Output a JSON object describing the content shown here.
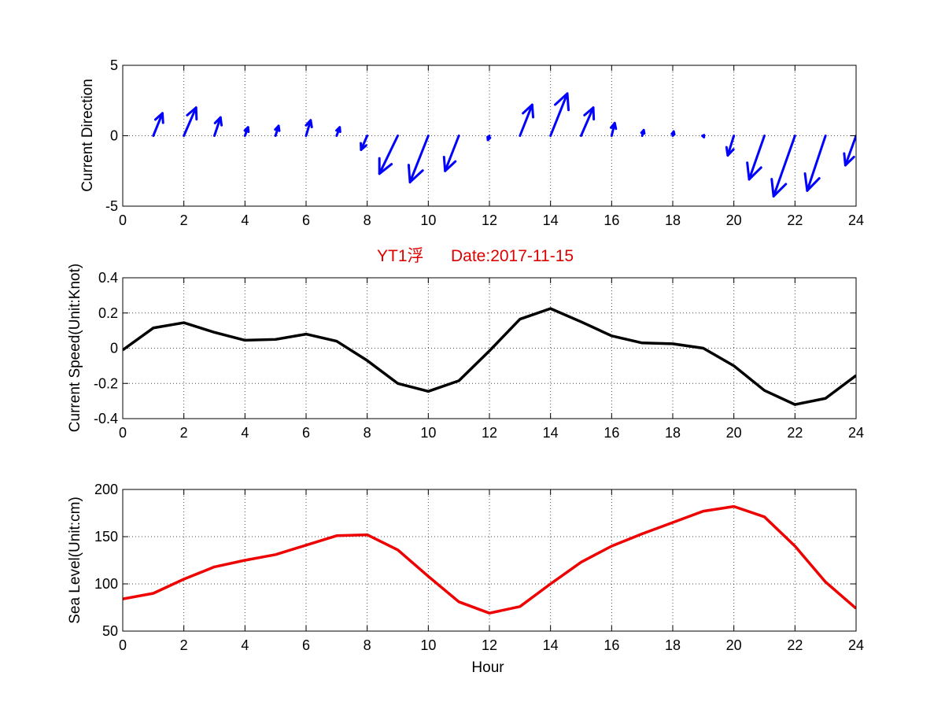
{
  "chart_data": [
    {
      "type": "quiver",
      "ylabel": "Current Direction",
      "xlim": [
        0,
        24
      ],
      "ylim": [
        -5,
        5
      ],
      "x_ticks": [
        "0",
        "2",
        "4",
        "6",
        "8",
        "10",
        "12",
        "14",
        "16",
        "18",
        "20",
        "22",
        "24"
      ],
      "y_ticks": [
        "5",
        "0",
        "-5"
      ],
      "grid": true,
      "arrow_color": "#0000ff",
      "arrows": [
        {
          "x": 1,
          "u": 0.3,
          "v": 1.6
        },
        {
          "x": 2,
          "u": 0.4,
          "v": 2.0
        },
        {
          "x": 3,
          "u": 0.2,
          "v": 1.3
        },
        {
          "x": 4,
          "u": 0.1,
          "v": 0.6
        },
        {
          "x": 5,
          "u": 0.1,
          "v": 0.7
        },
        {
          "x": 6,
          "u": 0.15,
          "v": 1.1
        },
        {
          "x": 7,
          "u": 0.1,
          "v": 0.6
        },
        {
          "x": 8,
          "u": -0.2,
          "v": -1.0
        },
        {
          "x": 9,
          "u": -0.6,
          "v": -2.7
        },
        {
          "x": 10,
          "u": -0.6,
          "v": -3.3
        },
        {
          "x": 11,
          "u": -0.45,
          "v": -2.5
        },
        {
          "x": 12,
          "u": -0.05,
          "v": -0.3
        },
        {
          "x": 13,
          "u": 0.4,
          "v": 2.2
        },
        {
          "x": 14,
          "u": 0.55,
          "v": 3.0
        },
        {
          "x": 15,
          "u": 0.4,
          "v": 2.0
        },
        {
          "x": 16,
          "u": 0.1,
          "v": 0.9
        },
        {
          "x": 17,
          "u": 0.05,
          "v": 0.4
        },
        {
          "x": 18,
          "u": 0.03,
          "v": 0.3
        },
        {
          "x": 19,
          "u": 0.02,
          "v": -0.1
        },
        {
          "x": 20,
          "u": -0.2,
          "v": -1.4
        },
        {
          "x": 21,
          "u": -0.5,
          "v": -3.1
        },
        {
          "x": 22,
          "u": -0.7,
          "v": -4.3
        },
        {
          "x": 23,
          "u": -0.6,
          "v": -3.9
        },
        {
          "x": 24,
          "u": -0.35,
          "v": -2.1
        }
      ]
    },
    {
      "type": "line",
      "title_left": "YT1浮",
      "title_right": "Date:2017-11-15",
      "title_color": "#dd0000",
      "ylabel": "Current Speed(Unit:Knot)",
      "xlim": [
        0,
        24
      ],
      "ylim": [
        -0.4,
        0.4
      ],
      "x_ticks": [
        "0",
        "2",
        "4",
        "6",
        "8",
        "10",
        "12",
        "14",
        "16",
        "18",
        "20",
        "22",
        "24"
      ],
      "y_ticks": [
        "0.4",
        "0.2",
        "0",
        "-0.2",
        "-0.4"
      ],
      "grid": true,
      "series": [
        {
          "color": "#000000",
          "x": [
            0,
            1,
            2,
            3,
            4,
            5,
            6,
            7,
            8,
            9,
            10,
            11,
            12,
            13,
            14,
            15,
            16,
            17,
            18,
            19,
            20,
            21,
            22,
            23,
            24
          ],
          "values": [
            -0.01,
            0.115,
            0.145,
            0.09,
            0.045,
            0.05,
            0.08,
            0.04,
            -0.07,
            -0.2,
            -0.245,
            -0.185,
            -0.015,
            0.165,
            0.225,
            0.15,
            0.07,
            0.03,
            0.025,
            0.0,
            -0.1,
            -0.24,
            -0.32,
            -0.285,
            -0.155
          ]
        }
      ]
    },
    {
      "type": "line",
      "ylabel": "Sea Level(Unit:cm)",
      "xlabel": "Hour",
      "xlim": [
        0,
        24
      ],
      "ylim": [
        50,
        200
      ],
      "x_ticks": [
        "0",
        "2",
        "4",
        "6",
        "8",
        "10",
        "12",
        "14",
        "16",
        "18",
        "20",
        "22",
        "24"
      ],
      "y_ticks": [
        "200",
        "150",
        "100",
        "50"
      ],
      "grid": true,
      "series": [
        {
          "color": "#ee0000",
          "x": [
            0,
            1,
            2,
            3,
            4,
            5,
            6,
            7,
            8,
            9,
            10,
            11,
            12,
            13,
            14,
            15,
            16,
            17,
            18,
            19,
            20,
            21,
            22,
            23,
            24
          ],
          "values": [
            84,
            90,
            105,
            118,
            125,
            131,
            141,
            151,
            152,
            136,
            108,
            81,
            69,
            76,
            100,
            123,
            140,
            153,
            165,
            177,
            182,
            171,
            140,
            102,
            74
          ]
        }
      ]
    }
  ]
}
